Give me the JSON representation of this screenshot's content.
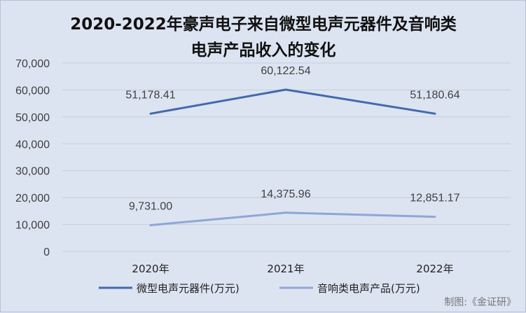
{
  "chart_data": {
    "type": "line",
    "title_line1": "2020-2022年豪声电子来自微型电声元器件及音响类",
    "title_line2": "电声产品收入的变化",
    "categories": [
      "2020年",
      "2021年",
      "2022年"
    ],
    "series": [
      {
        "name": "微型电声元器件(万元)",
        "values": [
          51178.41,
          60122.54,
          51180.64
        ],
        "labels": [
          "51,178.41",
          "60,122.54",
          "51,180.64"
        ],
        "color": "#4468ad"
      },
      {
        "name": "音响类电声产品(万元)",
        "values": [
          9731.0,
          14375.96,
          12851.17
        ],
        "labels": [
          "9,731.00",
          "14,375.96",
          "12,851.17"
        ],
        "color": "#8fa6d6"
      }
    ],
    "ylim": [
      0,
      70000
    ],
    "yticks": [
      0,
      10000,
      20000,
      30000,
      40000,
      50000,
      60000,
      70000
    ],
    "ytick_labels": [
      "0",
      "10,000",
      "20,000",
      "30,000",
      "40,000",
      "50,000",
      "60,000",
      "70,000"
    ],
    "grid": true,
    "legend_position": "bottom"
  },
  "source": "制图:《金证研》"
}
